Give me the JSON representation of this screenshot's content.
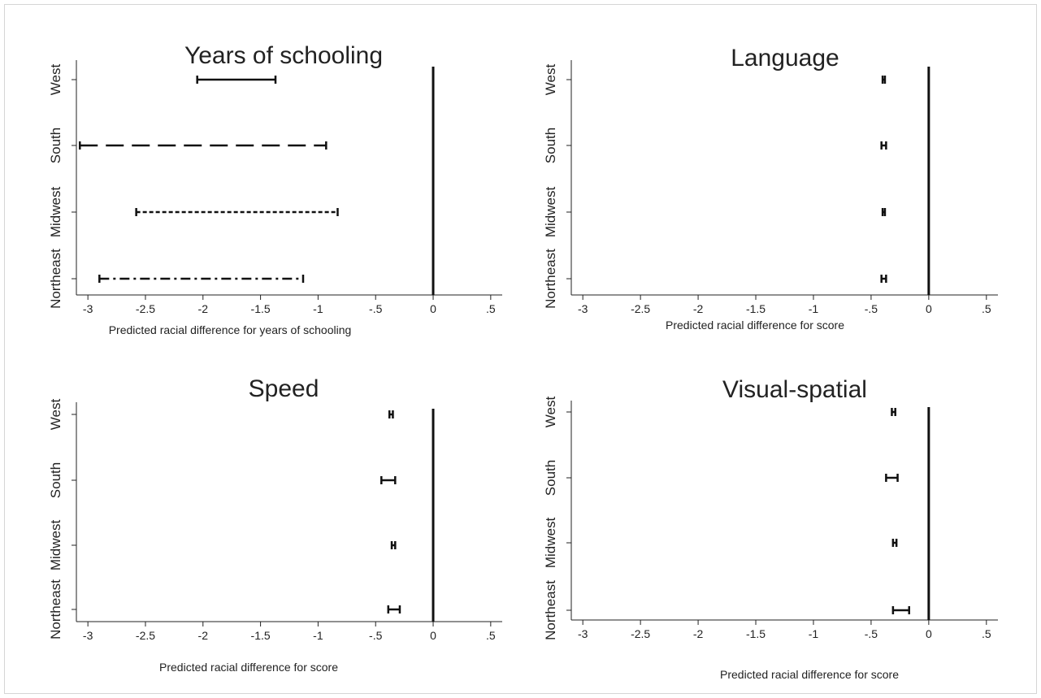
{
  "chart_data": [
    {
      "type": "errorbar",
      "title": "Years of schooling",
      "xlabel": "Predicted racial difference  for years of schooling",
      "xlim": [
        -3.1,
        0.6
      ],
      "xticks": [
        "-3",
        "-2.5",
        "-2",
        "-1.5",
        "-1",
        "-.5",
        "0",
        ".5"
      ],
      "reference_line_x": 0,
      "categories": [
        "West",
        "South",
        "Midwest",
        "Northeast"
      ],
      "series": [
        {
          "category": "West",
          "low": -2.05,
          "high": -1.37,
          "style": "solid"
        },
        {
          "category": "South",
          "low": -3.07,
          "high": -0.93,
          "style": "longdash"
        },
        {
          "category": "Midwest",
          "low": -2.58,
          "high": -0.83,
          "style": "shortdash"
        },
        {
          "category": "Northeast",
          "low": -2.9,
          "high": -1.13,
          "style": "dashdot"
        }
      ]
    },
    {
      "type": "errorbar",
      "title": "Language",
      "xlabel": "Predicted racial difference  for score",
      "xlim": [
        -3.1,
        0.6
      ],
      "xticks": [
        "-3",
        "-2.5",
        "-2",
        "-1.5",
        "-1",
        "-.5",
        "0",
        ".5"
      ],
      "reference_line_x": 0,
      "categories": [
        "West",
        "South",
        "Midwest",
        "Northeast"
      ],
      "series": [
        {
          "category": "West",
          "low": -0.4,
          "high": -0.38,
          "style": "solid"
        },
        {
          "category": "South",
          "low": -0.41,
          "high": -0.37,
          "style": "solid"
        },
        {
          "category": "Midwest",
          "low": -0.4,
          "high": -0.38,
          "style": "solid"
        },
        {
          "category": "Northeast",
          "low": -0.41,
          "high": -0.37,
          "style": "solid"
        }
      ]
    },
    {
      "type": "errorbar",
      "title": "Speed",
      "xlabel": "Predicted racial difference  for score",
      "xlim": [
        -3.1,
        0.6
      ],
      "xticks": [
        "-3",
        "-2.5",
        "-2",
        "-1.5",
        "-1",
        "-.5",
        "0",
        ".5"
      ],
      "reference_line_x": 0,
      "categories": [
        "West",
        "South",
        "Midwest",
        "Northeast"
      ],
      "series": [
        {
          "category": "West",
          "low": -0.38,
          "high": -0.35,
          "style": "solid"
        },
        {
          "category": "South",
          "low": -0.45,
          "high": -0.33,
          "style": "solid"
        },
        {
          "category": "Midwest",
          "low": -0.36,
          "high": -0.33,
          "style": "solid"
        },
        {
          "category": "Northeast",
          "low": -0.39,
          "high": -0.29,
          "style": "solid"
        }
      ]
    },
    {
      "type": "errorbar",
      "title": "Visual-spatial",
      "xlabel": "Predicted racial difference  for score",
      "xlim": [
        -3.1,
        0.6
      ],
      "xticks": [
        "-3",
        "-2.5",
        "-2",
        "-1.5",
        "-1",
        "-.5",
        "0",
        ".5"
      ],
      "reference_line_x": 0,
      "categories": [
        "West",
        "South",
        "Midwest",
        "Northeast"
      ],
      "series": [
        {
          "category": "West",
          "low": -0.32,
          "high": -0.29,
          "style": "solid"
        },
        {
          "category": "South",
          "low": -0.37,
          "high": -0.27,
          "style": "solid"
        },
        {
          "category": "Midwest",
          "low": -0.31,
          "high": -0.28,
          "style": "solid"
        },
        {
          "category": "Northeast",
          "low": -0.31,
          "high": -0.17,
          "style": "solid"
        }
      ]
    }
  ]
}
